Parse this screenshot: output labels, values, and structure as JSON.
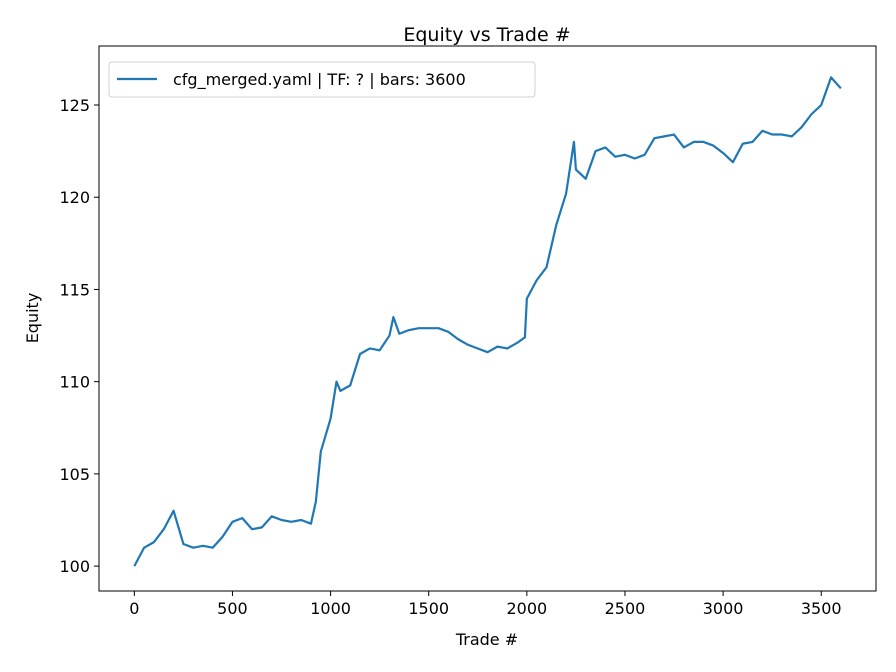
{
  "chart_data": {
    "type": "line",
    "title": "Equity vs Trade #",
    "xlabel": "Trade #",
    "ylabel": "Equity",
    "x": [
      0,
      50,
      100,
      150,
      200,
      250,
      300,
      350,
      400,
      450,
      500,
      550,
      600,
      650,
      700,
      750,
      800,
      850,
      900,
      925,
      950,
      1000,
      1030,
      1050,
      1100,
      1150,
      1200,
      1250,
      1300,
      1320,
      1350,
      1400,
      1450,
      1500,
      1550,
      1600,
      1650,
      1700,
      1750,
      1800,
      1850,
      1900,
      1950,
      1990,
      2000,
      2050,
      2100,
      2150,
      2200,
      2240,
      2250,
      2300,
      2350,
      2400,
      2450,
      2500,
      2550,
      2600,
      2650,
      2700,
      2750,
      2800,
      2850,
      2900,
      2950,
      3000,
      3050,
      3100,
      3150,
      3200,
      3250,
      3300,
      3350,
      3400,
      3450,
      3500,
      3550,
      3600
    ],
    "series": [
      {
        "name": "cfg_merged.yaml | TF: ? | bars: 3600",
        "color": "#1f77b4",
        "values": [
          100,
          101.0,
          101.3,
          102.0,
          103.0,
          101.2,
          101.0,
          101.1,
          101.0,
          101.6,
          102.4,
          102.6,
          102.0,
          102.1,
          102.7,
          102.5,
          102.4,
          102.5,
          102.3,
          103.5,
          106.2,
          108.0,
          110.0,
          109.5,
          109.8,
          111.5,
          111.8,
          111.7,
          112.5,
          113.5,
          112.6,
          112.8,
          112.9,
          112.9,
          112.9,
          112.7,
          112.3,
          112.0,
          111.8,
          111.6,
          111.9,
          111.8,
          112.1,
          112.4,
          114.5,
          115.5,
          116.2,
          118.5,
          120.2,
          123.0,
          121.5,
          121.0,
          122.5,
          122.7,
          122.2,
          122.3,
          122.1,
          122.3,
          123.2,
          123.3,
          123.4,
          122.7,
          123.0,
          123.0,
          122.8,
          122.4,
          121.9,
          122.9,
          123.0,
          123.6,
          123.4,
          123.4,
          123.3,
          123.8,
          124.5,
          125.0,
          126.5,
          125.9
        ]
      }
    ],
    "xlim": [
      -180,
      3779
    ],
    "ylim": [
      98.65,
      128.2
    ],
    "xticks": [
      0,
      500,
      1000,
      1500,
      2000,
      2500,
      3000,
      3500
    ],
    "yticks": [
      100,
      105,
      110,
      115,
      120,
      125
    ],
    "legend": "upper left",
    "grid": false
  }
}
